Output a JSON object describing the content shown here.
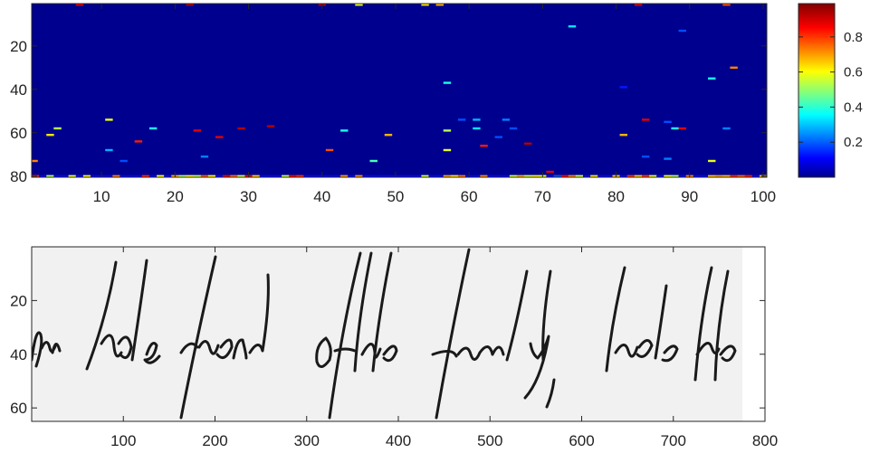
{
  "chart_data": [
    {
      "type": "heatmap",
      "title": "",
      "xlabel": "",
      "ylabel": "",
      "xlim": [
        0.5,
        100.5
      ],
      "ylim": [
        0.5,
        80.5
      ],
      "y_reversed": true,
      "xticks": [
        10,
        20,
        30,
        40,
        50,
        60,
        70,
        80,
        90,
        100
      ],
      "yticks": [
        20,
        40,
        60,
        80
      ],
      "colormap": "jet",
      "background_value": 0.0,
      "color_range": [
        0,
        1
      ],
      "colorbar": {
        "ticks": [
          0.2,
          0.4,
          0.6,
          0.8
        ],
        "tick_labels": [
          "0.2",
          "0.4",
          "0.6",
          "0.8"
        ],
        "placement": "right"
      },
      "cells": [
        {
          "x": 7,
          "y": 1,
          "v": 0.9
        },
        {
          "x": 22,
          "y": 1,
          "v": 0.95
        },
        {
          "x": 40,
          "y": 1,
          "v": 0.95
        },
        {
          "x": 45,
          "y": 1,
          "v": 0.6
        },
        {
          "x": 54,
          "y": 1,
          "v": 0.65
        },
        {
          "x": 56,
          "y": 1,
          "v": 0.7
        },
        {
          "x": 83,
          "y": 1,
          "v": 0.9
        },
        {
          "x": 95,
          "y": 1,
          "v": 0.8
        },
        {
          "x": 74,
          "y": 11,
          "v": 0.35
        },
        {
          "x": 89,
          "y": 13,
          "v": 0.2
        },
        {
          "x": 96,
          "y": 30,
          "v": 0.75
        },
        {
          "x": 93,
          "y": 35,
          "v": 0.4
        },
        {
          "x": 57,
          "y": 37,
          "v": 0.4
        },
        {
          "x": 81,
          "y": 39,
          "v": 0.15
        },
        {
          "x": 11,
          "y": 54,
          "v": 0.6
        },
        {
          "x": 59,
          "y": 54,
          "v": 0.2
        },
        {
          "x": 61,
          "y": 54,
          "v": 0.3
        },
        {
          "x": 65,
          "y": 54,
          "v": 0.25
        },
        {
          "x": 84,
          "y": 54,
          "v": 0.9
        },
        {
          "x": 87,
          "y": 55,
          "v": 0.2
        },
        {
          "x": 4,
          "y": 58,
          "v": 0.55
        },
        {
          "x": 17,
          "y": 58,
          "v": 0.4
        },
        {
          "x": 23,
          "y": 59,
          "v": 0.9
        },
        {
          "x": 29,
          "y": 58,
          "v": 0.95
        },
        {
          "x": 33,
          "y": 57,
          "v": 0.95
        },
        {
          "x": 43,
          "y": 59,
          "v": 0.4
        },
        {
          "x": 49,
          "y": 61,
          "v": 0.7
        },
        {
          "x": 57,
          "y": 59,
          "v": 0.55
        },
        {
          "x": 61,
          "y": 58,
          "v": 0.35
        },
        {
          "x": 66,
          "y": 58,
          "v": 0.2
        },
        {
          "x": 81,
          "y": 61,
          "v": 0.7
        },
        {
          "x": 88,
          "y": 58,
          "v": 0.4
        },
        {
          "x": 89,
          "y": 58,
          "v": 0.9
        },
        {
          "x": 95,
          "y": 58,
          "v": 0.25
        },
        {
          "x": 3,
          "y": 61,
          "v": 0.65
        },
        {
          "x": 15,
          "y": 64,
          "v": 0.85
        },
        {
          "x": 26,
          "y": 62,
          "v": 0.9
        },
        {
          "x": 64,
          "y": 62,
          "v": 0.2
        },
        {
          "x": 68,
          "y": 65,
          "v": 0.95
        },
        {
          "x": 62,
          "y": 66,
          "v": 0.85
        },
        {
          "x": 11,
          "y": 68,
          "v": 0.3
        },
        {
          "x": 41,
          "y": 68,
          "v": 0.8
        },
        {
          "x": 57,
          "y": 68,
          "v": 0.6
        },
        {
          "x": 24,
          "y": 71,
          "v": 0.25
        },
        {
          "x": 84,
          "y": 71,
          "v": 0.2
        },
        {
          "x": 87,
          "y": 72,
          "v": 0.25
        },
        {
          "x": 0.8,
          "y": 73,
          "v": 0.75
        },
        {
          "x": 13,
          "y": 73,
          "v": 0.2
        },
        {
          "x": 47,
          "y": 73,
          "v": 0.45
        },
        {
          "x": 93,
          "y": 73,
          "v": 0.6
        },
        {
          "x": 71,
          "y": 78,
          "v": 0.9
        },
        {
          "x": 72,
          "y": 80,
          "v": 0.2
        }
      ],
      "bottom_row_speckle": {
        "y": 80,
        "from_x": 1,
        "to_x": 100
      }
    },
    {
      "type": "image",
      "title": "",
      "xlabel": "",
      "ylabel": "",
      "xlim": [
        0,
        800
      ],
      "ylim": [
        0,
        65
      ],
      "y_reversed": true,
      "xticks": [
        100,
        200,
        300,
        400,
        500,
        600,
        700,
        800
      ],
      "yticks": [
        20,
        40,
        60
      ],
      "image_extent_x": [
        0,
        775
      ],
      "handwriting": "the hole friend of the family , hale the"
    }
  ]
}
